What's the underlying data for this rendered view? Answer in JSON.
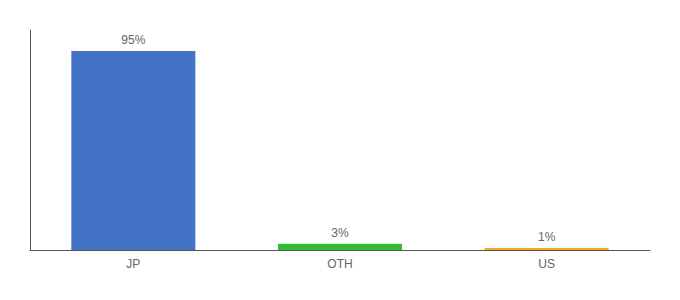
{
  "chart_data": {
    "type": "bar",
    "categories": [
      "JP",
      "OTH",
      "US"
    ],
    "values": [
      95,
      3,
      1
    ],
    "value_labels": [
      "95%",
      "3%",
      "1%"
    ],
    "colors": [
      "#4472c4",
      "#33bb33",
      "#f5a623"
    ],
    "ylim": [
      0,
      105
    ],
    "grid": false,
    "data_labels": true,
    "tick_labels": "x"
  }
}
